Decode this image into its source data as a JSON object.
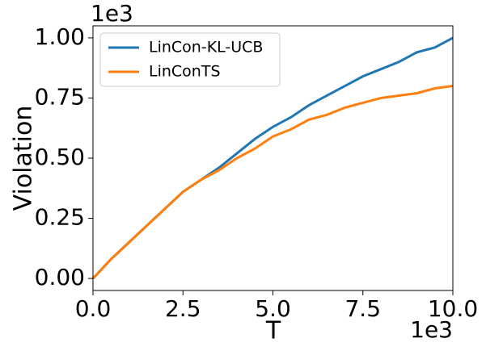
{
  "chart_data": {
    "type": "line",
    "x_label": "T",
    "y_label": "Violation",
    "x_offset_text": "1e3",
    "y_offset_text": "1e3",
    "x": [
      0,
      0.5,
      1,
      1.5,
      2,
      2.5,
      3,
      3.5,
      4,
      4.5,
      5,
      5.5,
      6,
      6.5,
      7,
      7.5,
      8,
      8.5,
      9,
      9.5,
      10
    ],
    "series": [
      {
        "name": "LinCon-KL-UCB",
        "color": "#1f77b4",
        "values": [
          0,
          0.08,
          0.15,
          0.22,
          0.29,
          0.36,
          0.41,
          0.46,
          0.52,
          0.58,
          0.63,
          0.67,
          0.72,
          0.76,
          0.8,
          0.84,
          0.87,
          0.9,
          0.94,
          0.96,
          1.0
        ]
      },
      {
        "name": "LinConTS",
        "color": "#ff7f0e",
        "values": [
          0,
          0.08,
          0.15,
          0.22,
          0.29,
          0.36,
          0.41,
          0.45,
          0.5,
          0.54,
          0.59,
          0.62,
          0.66,
          0.68,
          0.71,
          0.73,
          0.75,
          0.76,
          0.77,
          0.79,
          0.8
        ]
      }
    ],
    "xlim": [
      0,
      10
    ],
    "xticks": [
      {
        "value": 0,
        "label": "0.0"
      },
      {
        "value": 2.5,
        "label": "2.5"
      },
      {
        "value": 5,
        "label": "5.0"
      },
      {
        "value": 7.5,
        "label": "7.5"
      },
      {
        "value": 10,
        "label": "10.0"
      }
    ],
    "ylim": [
      -0.05,
      1.05
    ],
    "yticks": [
      {
        "value": 0,
        "label": "0.00"
      },
      {
        "value": 0.25,
        "label": "0.25"
      },
      {
        "value": 0.5,
        "label": "0.50"
      },
      {
        "value": 0.75,
        "label": "0.75"
      },
      {
        "value": 1,
        "label": "1.00"
      }
    ],
    "legend": "upper left",
    "grid": false
  }
}
